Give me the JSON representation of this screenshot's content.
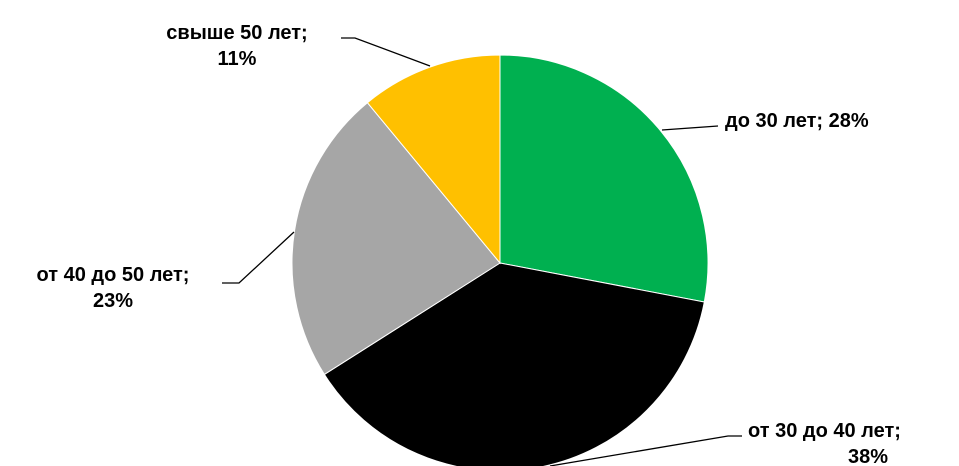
{
  "chart_data": {
    "type": "pie",
    "title": "",
    "legend": "none",
    "start_angle_deg": 0,
    "direction": "clockwise",
    "slices": [
      {
        "label": "до 30 лет",
        "value": 28,
        "display": [
          "до 30 лет; 28%"
        ],
        "color": "#00b050"
      },
      {
        "label": "от 30 до 40 лет",
        "value": 38,
        "display": [
          "от 30 до 40 лет;",
          "38%"
        ],
        "color": "#000000"
      },
      {
        "label": "от 40 до 50 лет",
        "value": 23,
        "display": [
          "от 40 до 50 лет;",
          "23%"
        ],
        "color": "#a6a6a6"
      },
      {
        "label": "свыше 50 лет",
        "value": 11,
        "display": [
          "свыше 50 лет;",
          "11%"
        ],
        "color": "#ffc000"
      }
    ]
  }
}
